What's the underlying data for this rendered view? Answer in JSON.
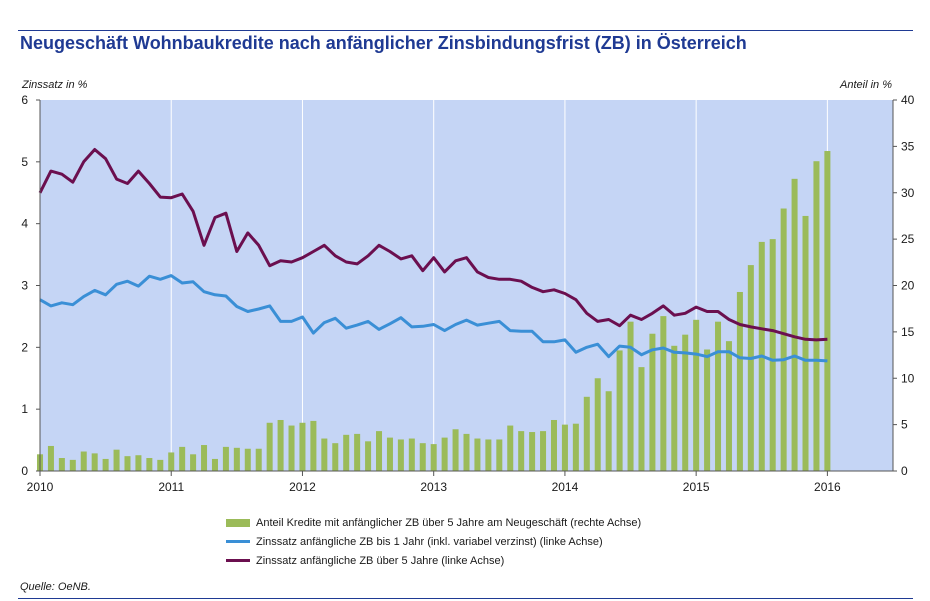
{
  "title": "Neugeschäft Wohnbaukredite nach anfänglicher Zinsbindungsfrist (ZB) in Österreich",
  "source": "Quelle: OeNB.",
  "colors": {
    "plot_background": "#c5d5f5",
    "bar": "#9bbb59",
    "line_short": "#3a8fd6",
    "line_long": "#6b0f4f",
    "title": "#1f3a93"
  },
  "chart_data": {
    "type": "bar+line",
    "ylabel_left": "Zinssatz in %",
    "ylabel_right": "Anteil in %",
    "ylim_left": [
      0,
      6
    ],
    "ylim_right": [
      0,
      40
    ],
    "yticks_left": [
      "0",
      "1",
      "2",
      "3",
      "4",
      "5",
      "6"
    ],
    "yticks_right": [
      "0",
      "5",
      "10",
      "15",
      "20",
      "25",
      "30",
      "35",
      "40"
    ],
    "x_labels": [
      "2010",
      "2011",
      "2012",
      "2013",
      "2014",
      "2015",
      "2016"
    ],
    "months": 79,
    "grid": "vertical lines at year starts",
    "series": [
      {
        "name": "Anteil Kredite mit anfänglicher ZB über 5 Jahre am Neugeschäft (rechte Achse)",
        "kind": "bar",
        "axis": "right",
        "values": [
          1.8,
          2.7,
          1.4,
          1.2,
          2.1,
          1.9,
          1.3,
          2.3,
          1.6,
          1.7,
          1.4,
          1.2,
          2.0,
          2.6,
          1.8,
          2.8,
          1.3,
          2.6,
          2.5,
          2.4,
          2.4,
          5.2,
          5.5,
          4.9,
          5.2,
          5.4,
          3.5,
          3.0,
          3.9,
          4.0,
          3.2,
          4.3,
          3.6,
          3.4,
          3.5,
          3.0,
          2.9,
          3.6,
          4.5,
          4.0,
          3.5,
          3.4,
          3.4,
          4.9,
          4.3,
          4.2,
          4.3,
          5.5,
          5.0,
          5.1,
          8.0,
          10.0,
          8.6,
          13.0,
          16.1,
          11.2,
          14.8,
          16.7,
          13.5,
          14.7,
          16.3,
          13.1,
          16.1,
          14.0,
          19.3,
          22.2,
          24.7,
          25.0,
          28.3,
          31.5,
          27.5,
          33.4,
          34.5
        ],
        "x_start": 0
      },
      {
        "name": "Zinssatz anfängliche ZB bis 1 Jahr (inkl. variabel verzinst) (linke Achse)",
        "kind": "line",
        "axis": "left",
        "values": [
          2.77,
          2.67,
          2.72,
          2.69,
          2.82,
          2.92,
          2.85,
          3.02,
          3.07,
          2.99,
          3.15,
          3.1,
          3.16,
          3.04,
          3.06,
          2.9,
          2.85,
          2.83,
          2.66,
          2.58,
          2.62,
          2.67,
          2.42,
          2.42,
          2.49,
          2.23,
          2.4,
          2.47,
          2.31,
          2.36,
          2.42,
          2.29,
          2.38,
          2.48,
          2.33,
          2.34,
          2.37,
          2.27,
          2.37,
          2.44,
          2.36,
          2.39,
          2.42,
          2.27,
          2.26,
          2.26,
          2.09,
          2.09,
          2.12,
          1.92,
          2.0,
          2.05,
          1.85,
          2.02,
          2.0,
          1.88,
          1.96,
          1.99,
          1.92,
          1.91,
          1.89,
          1.85,
          1.93,
          1.93,
          1.83,
          1.82,
          1.86,
          1.79,
          1.8,
          1.86,
          1.79,
          1.79,
          1.78
        ],
        "x_start": 0
      },
      {
        "name": "Zinssatz anfängliche ZB über 5 Jahre (linke Achse)",
        "kind": "line",
        "axis": "left",
        "values": [
          4.5,
          4.85,
          4.8,
          4.67,
          5.0,
          5.2,
          5.05,
          4.72,
          4.65,
          4.85,
          4.65,
          4.43,
          4.42,
          4.48,
          4.2,
          3.65,
          4.1,
          4.17,
          3.55,
          3.85,
          3.65,
          3.32,
          3.4,
          3.38,
          3.45,
          3.55,
          3.65,
          3.48,
          3.38,
          3.35,
          3.48,
          3.65,
          3.55,
          3.43,
          3.48,
          3.24,
          3.45,
          3.22,
          3.4,
          3.45,
          3.22,
          3.13,
          3.1,
          3.1,
          3.07,
          2.97,
          2.9,
          2.93,
          2.87,
          2.77,
          2.55,
          2.42,
          2.45,
          2.35,
          2.52,
          2.45,
          2.55,
          2.67,
          2.52,
          2.55,
          2.65,
          2.58,
          2.58,
          2.45,
          2.37,
          2.33,
          2.3,
          2.27,
          2.22,
          2.17,
          2.13,
          2.12,
          2.13
        ],
        "x_start": 0
      }
    ]
  }
}
